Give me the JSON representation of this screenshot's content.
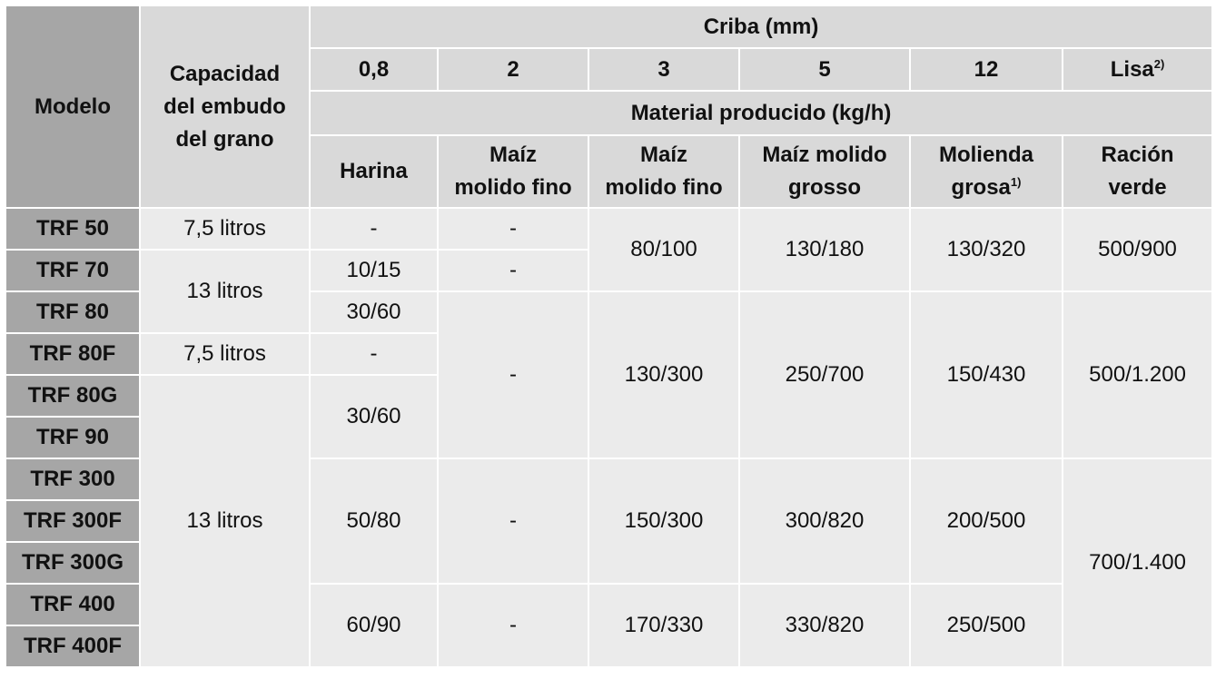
{
  "header": {
    "modelo": "Modelo",
    "capacidad": "Capacidad\ndel embudo\ndel grano",
    "criba": "Criba (mm)",
    "sizes": [
      "0,8",
      "2",
      "3",
      "5",
      "12",
      "Lisa"
    ],
    "lisa_sup": "2)",
    "material": "Material producido (kg/h)",
    "products": [
      "Harina",
      "Maíz\nmolido fino",
      "Maíz\nmolido fino",
      "Maíz molido\ngrosso",
      "Molienda\ngrosa",
      "Ración\nverde"
    ],
    "molienda_sup": "1)"
  },
  "table": {
    "models": [
      "TRF 50",
      "TRF 70",
      "TRF 80",
      "TRF 80F",
      "TRF 80G",
      "TRF 90",
      "TRF 300",
      "TRF 300F",
      "TRF 300G",
      "TRF 400",
      "TRF 400F"
    ],
    "capacity": [
      "7,5 litros",
      "13 litros",
      "7,5 litros",
      "13 litros"
    ],
    "col_08": [
      "-",
      "10/15",
      "30/60",
      "-",
      "30/60",
      "50/80",
      "60/90"
    ],
    "col_2": [
      "-",
      "-",
      "-",
      "-",
      "-"
    ],
    "col_3": [
      "80/100",
      "130/300",
      "150/300",
      "170/330"
    ],
    "col_5": [
      "130/180",
      "250/700",
      "300/820",
      "330/820"
    ],
    "col_12": [
      "130/320",
      "150/430",
      "200/500",
      "250/500"
    ],
    "col_lisa": [
      "500/900",
      "500/1.200",
      "700/1.400"
    ]
  }
}
